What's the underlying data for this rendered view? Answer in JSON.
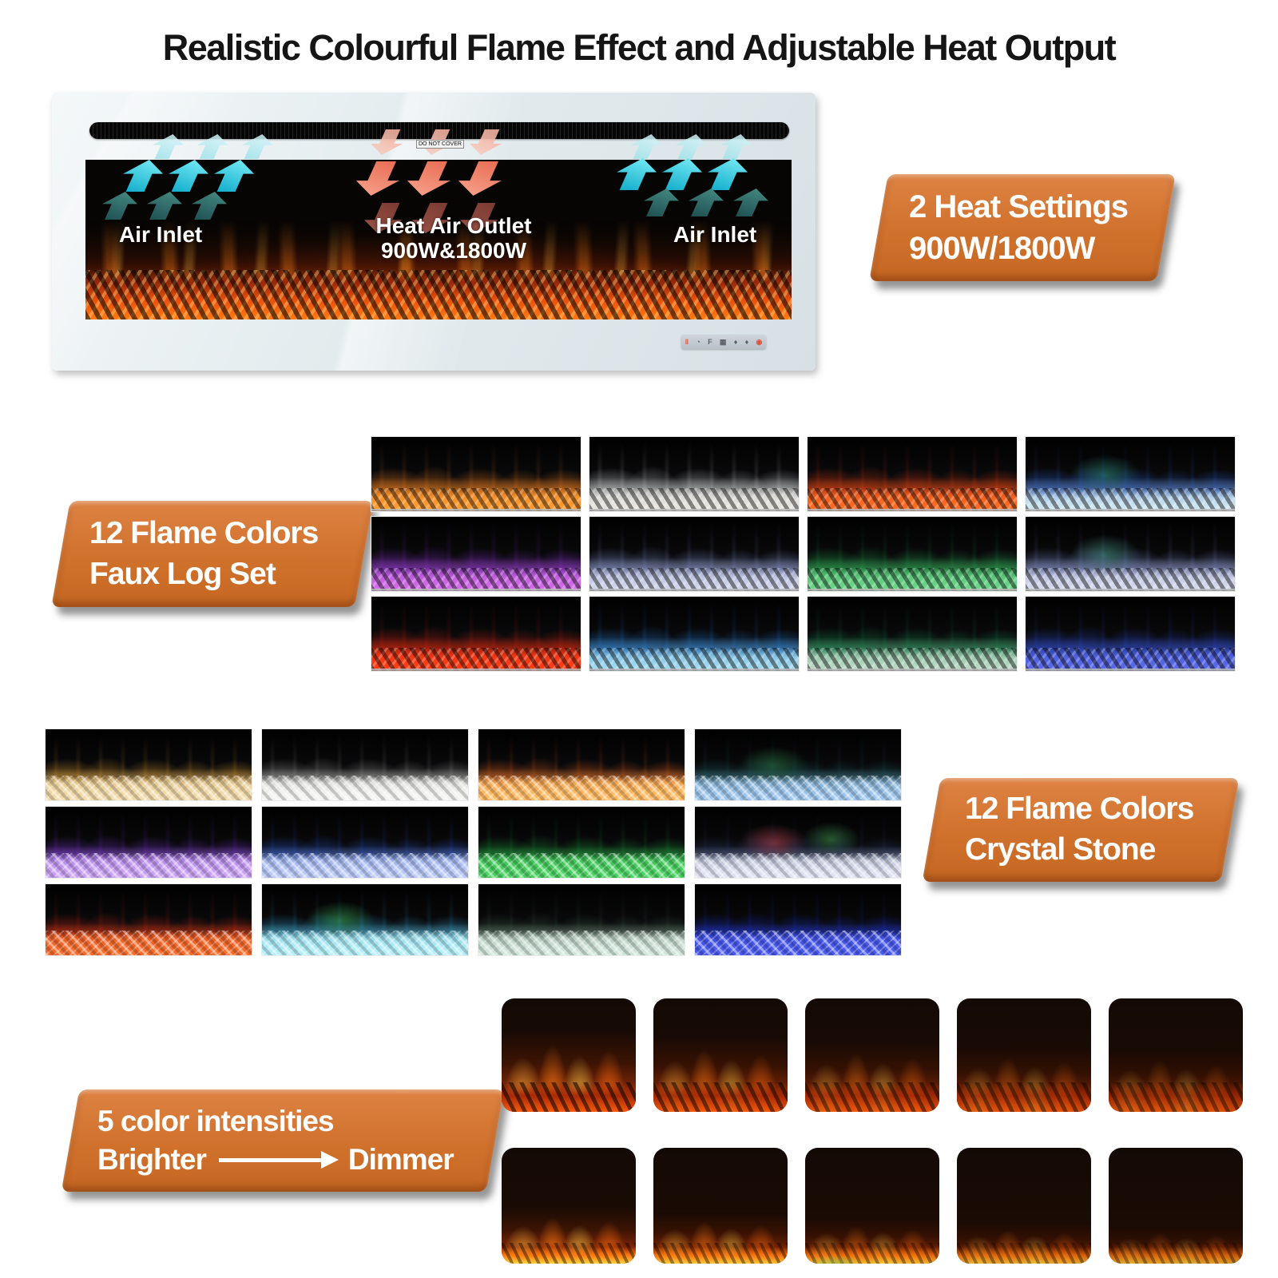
{
  "title": "Realistic Colourful Flame Effect and Adjustable Heat Output",
  "fireplace": {
    "vent_label": "DO NOT COVER",
    "left_inlet_label": "Air Inlet",
    "outlet_label_line1": "Heat Air Outlet",
    "outlet_label_line2": "900W&1800W",
    "right_inlet_label": "Air Inlet",
    "controls": [
      {
        "name": "heat-level-icon",
        "glyph": "‖",
        "color": "#e05238"
      },
      {
        "name": "timer-icon",
        "glyph": "◔",
        "color": "#5a6066"
      },
      {
        "name": "flame-effect-icon",
        "glyph": "F",
        "color": "#5a6066"
      },
      {
        "name": "log-bed-icon",
        "glyph": "▦",
        "color": "#5a6066"
      },
      {
        "name": "flame-color-icon",
        "glyph": "♦",
        "color": "#5a6066"
      },
      {
        "name": "brightness-icon",
        "glyph": "♦",
        "color": "#5a6066"
      },
      {
        "name": "power-icon",
        "glyph": "◉",
        "color": "#e05238"
      }
    ]
  },
  "badges": {
    "heat": {
      "line1": "2 Heat Settings",
      "line2": "900W/1800W"
    },
    "faux": {
      "line1": "12 Flame Colors",
      "line2": "Faux Log Set"
    },
    "crystal": {
      "line1": "12 Flame Colors",
      "line2": "Crystal Stone"
    },
    "intensity": {
      "line1": "5 color intensities",
      "from_label": "Brighter",
      "to_label": "Dimmer"
    }
  },
  "badge_color": "#d0712c",
  "faux_grid": {
    "cells": [
      {
        "name": "orange",
        "flame": "#e8761c",
        "bed": "#ff9a2e"
      },
      {
        "name": "white-silver",
        "flame": "#c8ccce",
        "bed": "#e6e4de"
      },
      {
        "name": "red-orange",
        "flame": "#e03c10",
        "bed": "#ff6a22"
      },
      {
        "name": "blue-teal",
        "flame": "#2b62d4",
        "bed": "#cde6f2",
        "accent": "#2e8f7f"
      },
      {
        "name": "violet",
        "flame": "#8a2fd0",
        "bed": "#d26ae8"
      },
      {
        "name": "steel-blue",
        "flame": "#7f8fd0",
        "bed": "#d0d4ea"
      },
      {
        "name": "green",
        "flame": "#1fa54a",
        "bed": "#6ad488"
      },
      {
        "name": "lavender-teal",
        "flame": "#7888cc",
        "bed": "#d4d8ec",
        "accent": "#4a9a8a"
      },
      {
        "name": "red",
        "flame": "#d42410",
        "bed": "#ff3c14"
      },
      {
        "name": "cyan-blue",
        "flame": "#1f7fe0",
        "bed": "#9fd8ee"
      },
      {
        "name": "teal-green",
        "flame": "#129050",
        "bed": "#b8d8c4"
      },
      {
        "name": "indigo-blue",
        "flame": "#2848cc",
        "bed": "#5868e8"
      }
    ]
  },
  "crystal_grid": {
    "cells": [
      {
        "name": "amber",
        "flame": "#e09a28",
        "bed": "#f0d9a8"
      },
      {
        "name": "smoke-white",
        "flame": "#9a9a96",
        "bed": "#f2f2f0"
      },
      {
        "name": "orange-fire",
        "flame": "#e8601a",
        "bed": "#ffb85e"
      },
      {
        "name": "dark-teal-blue",
        "flame": "#175a60",
        "bed": "#9cc4ec",
        "accent": "#2d7a46"
      },
      {
        "name": "purple",
        "flame": "#7a2fd8",
        "bed": "#c9a0f5"
      },
      {
        "name": "blue",
        "flame": "#2858d8",
        "bed": "#b8c8f8"
      },
      {
        "name": "green",
        "flame": "#18a038",
        "bed": "#48d060"
      },
      {
        "name": "navy-multicolor",
        "flame": "#2a3c6e",
        "bed": "#dde0f0",
        "accent": "#c04858",
        "accent2": "#3a8a4a"
      },
      {
        "name": "red",
        "flame": "#d82810",
        "bed": "#f86a28"
      },
      {
        "name": "cyan",
        "flame": "#2aa0d0",
        "bed": "#b0eef8",
        "accent": "#38a858"
      },
      {
        "name": "dark-green",
        "flame": "#3d5c46",
        "bed": "#cfe4d8"
      },
      {
        "name": "deep-blue",
        "flame": "#1830d8",
        "bed": "#4858f0"
      }
    ]
  },
  "intensity_rows": [
    {
      "name": "mid-flames",
      "levels": [
        1,
        0.85,
        0.72,
        0.6,
        0.5
      ]
    },
    {
      "name": "low-flames",
      "levels": [
        1,
        0.85,
        0.7,
        0.55,
        0.45
      ]
    }
  ]
}
